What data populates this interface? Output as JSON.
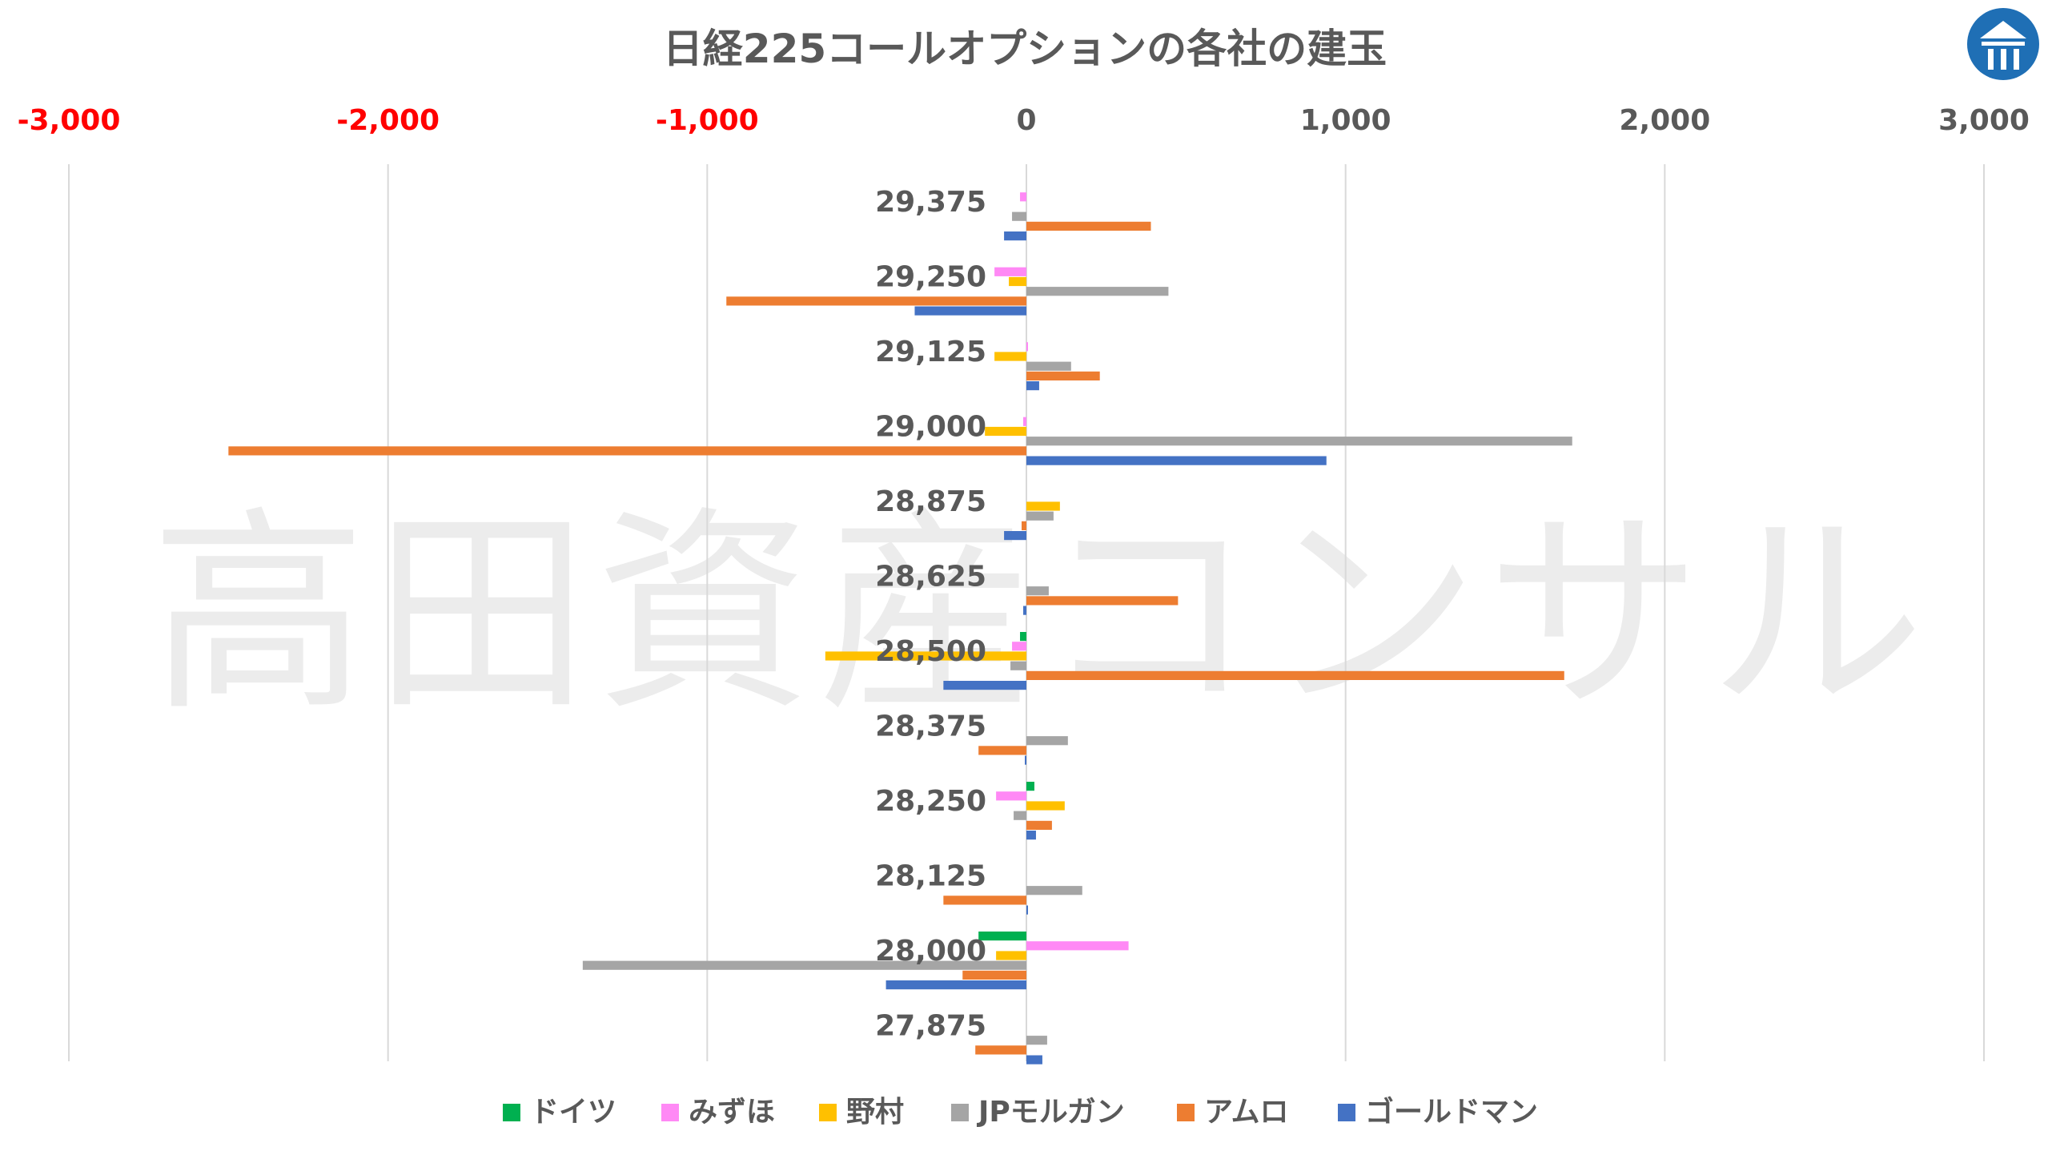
{
  "chart_data": {
    "type": "bar",
    "orientation": "horizontal",
    "title": "日経225コールオプションの各社の建玉",
    "watermark": "高田資産コンサル",
    "xlim": [
      -3000,
      3000
    ],
    "xticks": [
      -3000,
      -2000,
      -1000,
      0,
      1000,
      2000,
      3000
    ],
    "xtick_labels": [
      "-3,000",
      "-2,000",
      "-1,000",
      "0",
      "1,000",
      "2,000",
      "3,000"
    ],
    "negative_tick_color": "#ff0000",
    "positive_tick_color": "#595959",
    "grid": true,
    "legend_position": "bottom",
    "categories": [
      "29,375",
      "29,250",
      "29,125",
      "29,000",
      "28,875",
      "28,625",
      "28,500",
      "28,375",
      "28,250",
      "28,125",
      "28,000",
      "27,875"
    ],
    "series": [
      {
        "name": "ドイツ",
        "color": "#00b050",
        "values": [
          0,
          0,
          0,
          0,
          0,
          0,
          -20,
          0,
          25,
          0,
          -150,
          0
        ]
      },
      {
        "name": "みずほ",
        "color": "#ff89f5",
        "values": [
          -20,
          -100,
          5,
          -10,
          0,
          0,
          -45,
          0,
          -95,
          0,
          320,
          0
        ]
      },
      {
        "name": "野村",
        "color": "#ffc000",
        "values": [
          0,
          -55,
          -100,
          -130,
          105,
          0,
          -630,
          0,
          120,
          0,
          -95,
          0
        ]
      },
      {
        "name": "JPモルガン",
        "color": "#a5a5a5",
        "values": [
          -45,
          445,
          140,
          1710,
          85,
          70,
          -50,
          130,
          -40,
          175,
          -1390,
          65
        ]
      },
      {
        "name": "アムロ",
        "color": "#ed7d31",
        "values": [
          390,
          -940,
          230,
          -2500,
          -15,
          475,
          1685,
          -150,
          80,
          -260,
          -200,
          -160
        ]
      },
      {
        "name": "ゴールドマン",
        "color": "#4472c4",
        "values": [
          -70,
          -350,
          40,
          940,
          -70,
          -10,
          -260,
          -5,
          30,
          5,
          -440,
          50
        ]
      }
    ]
  }
}
